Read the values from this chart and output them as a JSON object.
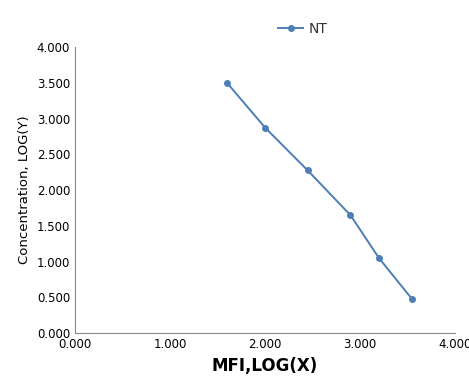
{
  "x": [
    1.6,
    2.0,
    2.45,
    2.9,
    3.2,
    3.55
  ],
  "y": [
    3.5,
    2.875,
    2.275,
    1.65,
    1.05,
    0.475
  ],
  "line_color": "#4d7eb5",
  "marker": "o",
  "marker_size": 4,
  "linewidth": 1.4,
  "legend_label": "NT",
  "xlabel": "MFI,LOG(X)",
  "ylabel": "Concentration, LOG(Y)",
  "xlim": [
    0.0,
    4.0
  ],
  "ylim": [
    0.0,
    4.0
  ],
  "xticks": [
    0.0,
    1.0,
    2.0,
    3.0,
    4.0
  ],
  "yticks": [
    0.0,
    0.5,
    1.0,
    1.5,
    2.0,
    2.5,
    3.0,
    3.5,
    4.0
  ],
  "xlabel_fontsize": 12,
  "ylabel_fontsize": 9.5,
  "tick_fontsize": 8.5,
  "legend_fontsize": 10,
  "spine_color": "#888888",
  "background_color": "#ffffff"
}
